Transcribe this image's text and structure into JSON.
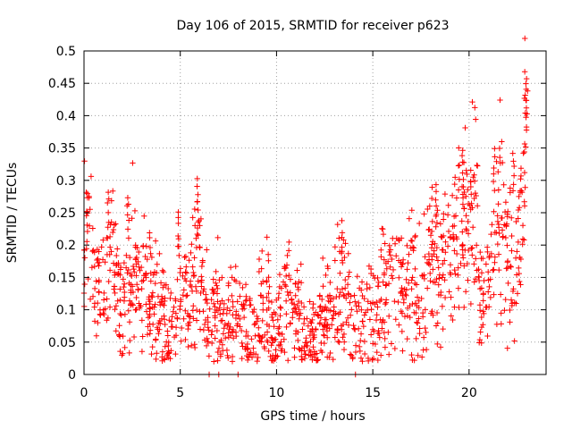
{
  "chart_data": {
    "type": "scatter",
    "title": "Day 106 of 2015, SRMTID for receiver p623",
    "xlabel": "GPS time / hours",
    "ylabel": "SRMTID / TECUs",
    "xlim": [
      0,
      24
    ],
    "ylim": [
      0,
      0.5
    ],
    "xticks": [
      0,
      5,
      10,
      15,
      20
    ],
    "xtick_labels": [
      "0",
      "5",
      "10",
      "15",
      "20"
    ],
    "yticks": [
      0,
      0.05,
      0.1,
      0.15,
      0.2,
      0.25,
      0.3,
      0.35,
      0.4,
      0.45,
      0.5
    ],
    "ytick_labels": [
      "0",
      "0.05",
      "0.1",
      "0.15",
      "0.2",
      "0.25",
      "0.3",
      "0.35",
      "0.4",
      "0.45",
      "0.5"
    ],
    "grid": true,
    "marker": "plus",
    "color": "#ff0000",
    "series": [
      {
        "name": "SRMTID",
        "approx_envelope": [
          {
            "x": 0.0,
            "y": 0.17
          },
          {
            "x": 0.25,
            "y": 0.24
          },
          {
            "x": 0.5,
            "y": 0.12
          },
          {
            "x": 1.0,
            "y": 0.14
          },
          {
            "x": 1.5,
            "y": 0.19
          },
          {
            "x": 2.0,
            "y": 0.1
          },
          {
            "x": 2.3,
            "y": 0.2
          },
          {
            "x": 3.0,
            "y": 0.11
          },
          {
            "x": 3.5,
            "y": 0.13
          },
          {
            "x": 4.0,
            "y": 0.08
          },
          {
            "x": 4.5,
            "y": 0.06
          },
          {
            "x": 5.0,
            "y": 0.15
          },
          {
            "x": 5.5,
            "y": 0.1
          },
          {
            "x": 5.9,
            "y": 0.22
          },
          {
            "x": 6.3,
            "y": 0.08
          },
          {
            "x": 7.0,
            "y": 0.1
          },
          {
            "x": 7.5,
            "y": 0.07
          },
          {
            "x": 8.0,
            "y": 0.12
          },
          {
            "x": 8.5,
            "y": 0.05
          },
          {
            "x": 9.0,
            "y": 0.08
          },
          {
            "x": 9.5,
            "y": 0.11
          },
          {
            "x": 10.0,
            "y": 0.06
          },
          {
            "x": 10.5,
            "y": 0.12
          },
          {
            "x": 11.0,
            "y": 0.09
          },
          {
            "x": 11.5,
            "y": 0.06
          },
          {
            "x": 12.0,
            "y": 0.05
          },
          {
            "x": 12.5,
            "y": 0.08
          },
          {
            "x": 13.0,
            "y": 0.1
          },
          {
            "x": 13.5,
            "y": 0.14
          },
          {
            "x": 14.0,
            "y": 0.07
          },
          {
            "x": 14.5,
            "y": 0.1
          },
          {
            "x": 15.0,
            "y": 0.09
          },
          {
            "x": 15.5,
            "y": 0.13
          },
          {
            "x": 16.0,
            "y": 0.17
          },
          {
            "x": 16.5,
            "y": 0.12
          },
          {
            "x": 17.0,
            "y": 0.14
          },
          {
            "x": 17.5,
            "y": 0.1
          },
          {
            "x": 18.0,
            "y": 0.2
          },
          {
            "x": 18.5,
            "y": 0.14
          },
          {
            "x": 19.0,
            "y": 0.2
          },
          {
            "x": 19.5,
            "y": 0.24
          },
          {
            "x": 20.0,
            "y": 0.22
          },
          {
            "x": 20.3,
            "y": 0.28
          },
          {
            "x": 20.6,
            "y": 0.09
          },
          {
            "x": 21.0,
            "y": 0.15
          },
          {
            "x": 21.5,
            "y": 0.26
          },
          {
            "x": 22.0,
            "y": 0.18
          },
          {
            "x": 22.5,
            "y": 0.14
          },
          {
            "x": 22.8,
            "y": 0.3
          },
          {
            "x": 23.0,
            "y": 0.4
          }
        ],
        "zero_points": [
          6.5,
          7.0,
          8.0,
          14.1
        ],
        "spikes": [
          {
            "x": 0.15,
            "y": 0.26
          },
          {
            "x": 1.25,
            "y": 0.28
          },
          {
            "x": 2.3,
            "y": 0.28
          },
          {
            "x": 4.9,
            "y": 0.26
          },
          {
            "x": 5.9,
            "y": 0.28
          },
          {
            "x": 13.4,
            "y": 0.24
          },
          {
            "x": 18.3,
            "y": 0.3
          },
          {
            "x": 19.7,
            "y": 0.33
          },
          {
            "x": 20.1,
            "y": 0.32
          },
          {
            "x": 21.3,
            "y": 0.35
          },
          {
            "x": 22.3,
            "y": 0.35
          },
          {
            "x": 22.95,
            "y": 0.46
          },
          {
            "x": 23.0,
            "y": 0.44
          }
        ]
      }
    ]
  }
}
